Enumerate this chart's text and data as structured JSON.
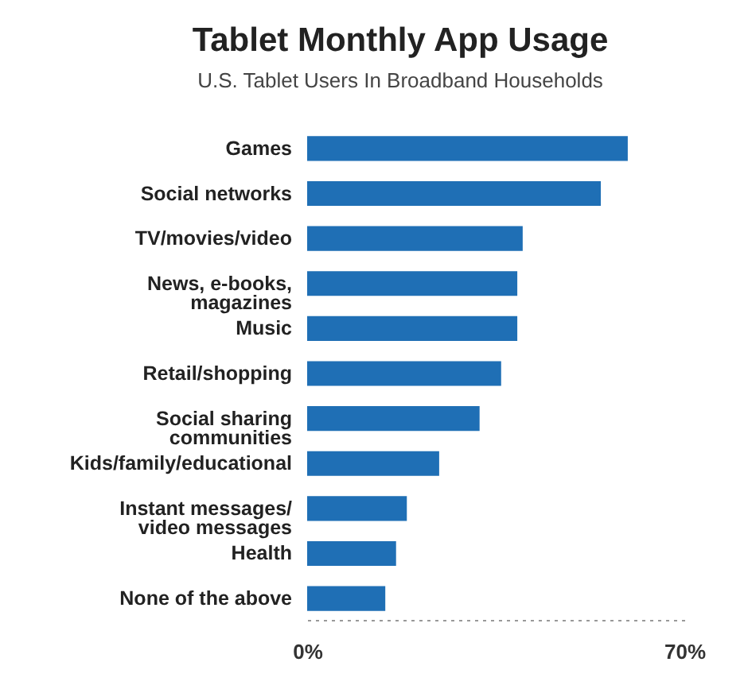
{
  "chart_data": {
    "type": "bar",
    "orientation": "horizontal",
    "title": "Tablet Monthly App Usage",
    "subtitle": "U.S. Tablet Users In Broadband Households",
    "categories": [
      "Games",
      "Social networks",
      "TV/movies/video",
      "News, e-books, magazines",
      "Music",
      "Retail/shopping",
      "Social sharing communities",
      "Kids/family/educational",
      "Instant messages/ video messages",
      "Health",
      "None of the above"
    ],
    "values": [
      59.5,
      54.5,
      40,
      39,
      39,
      36,
      32,
      24.5,
      18.5,
      16.5,
      14.5
    ],
    "color": "#1f6fb5",
    "xlim": [
      0,
      70
    ],
    "xticks": [
      {
        "value": 0,
        "label": "0%"
      },
      {
        "value": 70,
        "label": "70%"
      }
    ],
    "grid": false
  }
}
